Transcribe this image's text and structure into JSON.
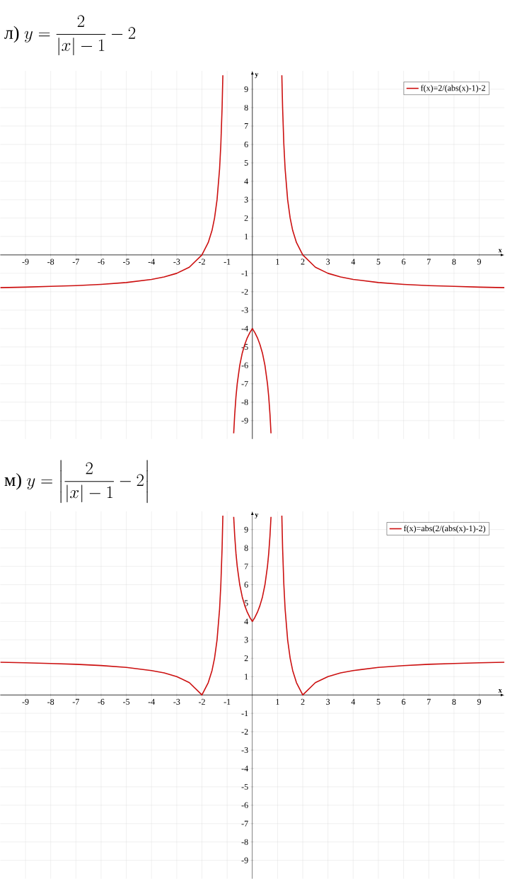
{
  "chart_data": [
    {
      "type": "line",
      "title": "\\text{л)}\\ y=\\frac{2}{|x|-1}-2",
      "xlabel": "x",
      "ylabel": "y",
      "xlim": [
        -10,
        10
      ],
      "ylim": [
        -10,
        10
      ],
      "xticks": [
        -9,
        -8,
        -7,
        -6,
        -5,
        -4,
        -3,
        -2,
        -1,
        1,
        2,
        3,
        4,
        5,
        6,
        7,
        8,
        9
      ],
      "yticks": [
        -9,
        -8,
        -7,
        -6,
        -5,
        -4,
        -3,
        -2,
        -1,
        1,
        2,
        3,
        4,
        5,
        6,
        7,
        8,
        9
      ],
      "grid": true,
      "legend": "top right",
      "series": [
        {
          "name": "f(x)=2/(abs(x)-1)-2",
          "color": "#cc1010",
          "x": [
            -10,
            -9,
            -8,
            -7,
            -6,
            -5,
            -4,
            -3.5,
            -3,
            -2.5,
            -2,
            -1.75,
            -1.6,
            -1.5,
            -1.4,
            -1.3,
            -1.25,
            -1.2,
            -1.17,
            null,
            -0.74,
            -0.7,
            -0.65,
            -0.6,
            -0.5,
            -0.4,
            -0.3,
            -0.2,
            -0.1,
            0,
            0.1,
            0.2,
            0.3,
            0.4,
            0.5,
            0.6,
            0.65,
            0.7,
            0.74,
            null,
            1.17,
            1.2,
            1.25,
            1.3,
            1.4,
            1.5,
            1.6,
            1.75,
            2,
            2.5,
            3,
            3.5,
            4,
            5,
            6,
            7,
            8,
            9,
            10
          ],
          "values": [
            -1.78,
            -1.75,
            -1.71,
            -1.67,
            -1.6,
            -1.5,
            -1.33,
            -1.2,
            -1,
            -0.67,
            0,
            0.67,
            1.33,
            2,
            3,
            4.67,
            6,
            8,
            9.76,
            null,
            -9.69,
            -8.67,
            -7.71,
            -7,
            -6,
            -5.33,
            -4.86,
            -4.5,
            -4.22,
            -4,
            -4.22,
            -4.5,
            -4.86,
            -5.33,
            -6,
            -7,
            -7.71,
            -8.67,
            -9.69,
            null,
            9.76,
            8,
            6,
            4.67,
            3,
            2,
            1.33,
            0.67,
            0,
            -0.67,
            -1,
            -1.2,
            -1.33,
            -1.5,
            -1.6,
            -1.67,
            -1.71,
            -1.75,
            -1.78
          ]
        }
      ]
    },
    {
      "type": "line",
      "title": "\\text{м)}\\ y=\\left|\\frac{2}{|x|-1}-2\\right|",
      "xlabel": "x",
      "ylabel": "y",
      "xlim": [
        -10,
        10
      ],
      "ylim": [
        -10,
        10
      ],
      "xticks": [
        -9,
        -8,
        -7,
        -6,
        -5,
        -4,
        -3,
        -2,
        -1,
        1,
        2,
        3,
        4,
        5,
        6,
        7,
        8,
        9
      ],
      "yticks": [
        -9,
        -8,
        -7,
        -6,
        -5,
        -4,
        -3,
        -2,
        -1,
        1,
        2,
        3,
        4,
        5,
        6,
        7,
        8,
        9
      ],
      "grid": true,
      "legend": "top right",
      "series": [
        {
          "name": "f(x)=abs(2/(abs(x)-1)-2)",
          "color": "#cc1010",
          "x": [
            -10,
            -9,
            -8,
            -7,
            -6,
            -5,
            -4,
            -3.5,
            -3,
            -2.5,
            -2,
            -1.75,
            -1.6,
            -1.5,
            -1.4,
            -1.3,
            -1.25,
            -1.2,
            -1.17,
            null,
            -0.74,
            -0.7,
            -0.65,
            -0.6,
            -0.5,
            -0.4,
            -0.3,
            -0.2,
            -0.1,
            0,
            0.1,
            0.2,
            0.3,
            0.4,
            0.5,
            0.6,
            0.65,
            0.7,
            0.74,
            null,
            1.17,
            1.2,
            1.25,
            1.3,
            1.4,
            1.5,
            1.6,
            1.75,
            2,
            2.5,
            3,
            3.5,
            4,
            5,
            6,
            7,
            8,
            9,
            10
          ],
          "values": [
            1.78,
            1.75,
            1.71,
            1.67,
            1.6,
            1.5,
            1.33,
            1.2,
            1,
            0.67,
            0,
            0.67,
            1.33,
            2,
            3,
            4.67,
            6,
            8,
            9.76,
            null,
            9.69,
            8.67,
            7.71,
            7,
            6,
            5.33,
            4.86,
            4.5,
            4.22,
            4,
            4.22,
            4.5,
            4.86,
            5.33,
            6,
            7,
            7.71,
            8.67,
            9.69,
            null,
            9.76,
            8,
            6,
            4.67,
            3,
            2,
            1.33,
            0.67,
            0,
            0.67,
            1,
            1.2,
            1.33,
            1.5,
            1.6,
            1.67,
            1.71,
            1.75,
            1.78
          ]
        }
      ]
    }
  ]
}
